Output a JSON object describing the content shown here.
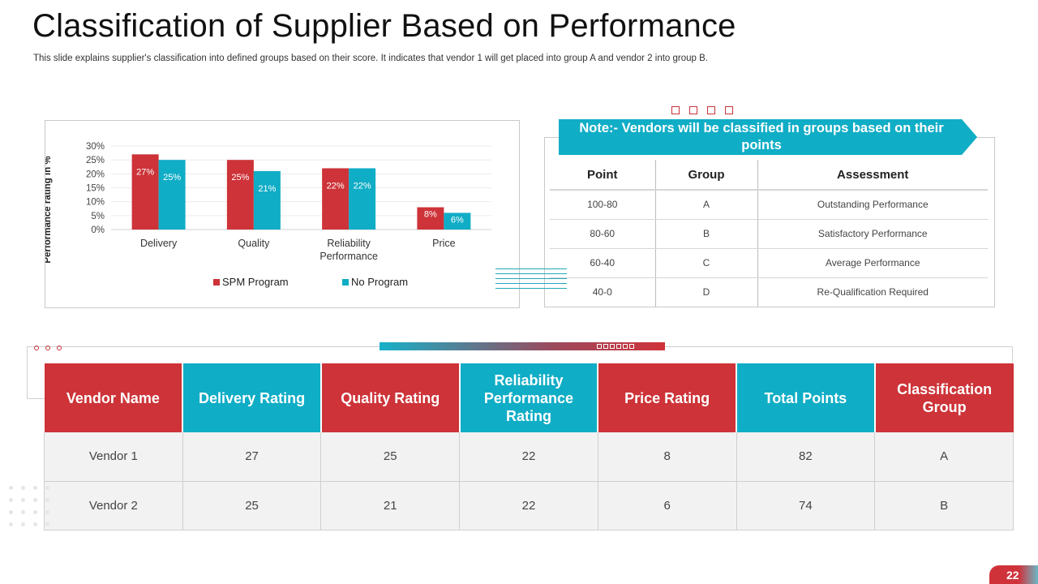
{
  "header": {
    "title": "Classification of Supplier Based on Performance",
    "subtitle": "This slide explains supplier's classification into defined groups based on their score. It indicates that vendor 1 will get placed into group A and vendor 2 into group B."
  },
  "colors": {
    "red": "#cd3338",
    "teal": "#10adc6"
  },
  "chart_data": {
    "type": "bar",
    "categories": [
      "Delivery",
      "Quality",
      "Reliability Performance",
      "Price"
    ],
    "series": [
      {
        "name": "SPM Program",
        "values": [
          27,
          25,
          22,
          8
        ],
        "labels": [
          "27%",
          "25%",
          "22%",
          "8%"
        ],
        "color": "#cd3338"
      },
      {
        "name": "No Program",
        "values": [
          25,
          21,
          22,
          6
        ],
        "labels": [
          "25%",
          "21%",
          "22%",
          "6%"
        ],
        "color": "#10adc6"
      }
    ],
    "ylabel": "Performance rating in %",
    "yticks": [
      "0%",
      "5%",
      "10%",
      "15%",
      "20%",
      "25%",
      "30%"
    ],
    "ylim": [
      0,
      30
    ],
    "legend": "bottom"
  },
  "note": {
    "text": "Note:- Vendors will be classified in groups based on their points"
  },
  "points_table": {
    "headers": [
      "Point",
      "Group",
      "Assessment"
    ],
    "rows": [
      [
        "100-80",
        "A",
        "Outstanding Performance"
      ],
      [
        "80-60",
        "B",
        "Satisfactory Performance"
      ],
      [
        "60-40",
        "C",
        "Average Performance"
      ],
      [
        "40-0",
        "D",
        "Re-Qualification Required"
      ]
    ]
  },
  "vendor_table": {
    "headers": [
      "Vendor Name",
      "Delivery Rating",
      "Quality Rating",
      "Reliability Performance Rating",
      "Price Rating",
      "Total Points",
      "Classification Group"
    ],
    "rows": [
      [
        "Vendor 1",
        "27",
        "25",
        "22",
        "8",
        "82",
        "A"
      ],
      [
        "Vendor 2",
        "25",
        "21",
        "22",
        "6",
        "74",
        "B"
      ]
    ]
  },
  "footer": {
    "page_number": "22"
  }
}
